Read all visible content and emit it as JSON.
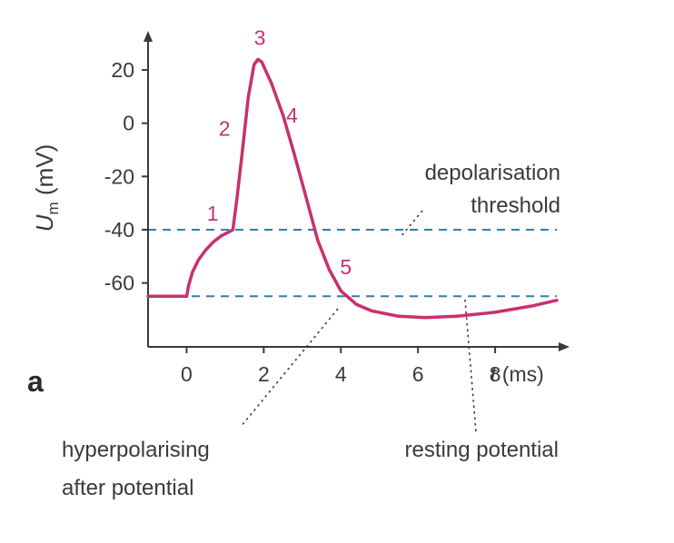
{
  "chart_data": {
    "type": "line",
    "panel_label": "a",
    "xlabel": {
      "var": "t",
      "unit": " (ms)"
    },
    "ylabel": {
      "var": "U",
      "sub": "m",
      "unit": " (mV)"
    },
    "xlim": [
      -1.0,
      9.6
    ],
    "ylim": [
      -84,
      34
    ],
    "x_ticks": [
      0,
      2,
      4,
      6,
      8
    ],
    "y_ticks": [
      20,
      0,
      -20,
      -40,
      -60
    ],
    "line_color": "#c8306e",
    "dashed_line_color": "#2e7fb8",
    "series": [
      {
        "points": [
          [
            -1.0,
            -65
          ],
          [
            0.0,
            -65
          ],
          [
            0.05,
            -61
          ],
          [
            0.15,
            -56
          ],
          [
            0.3,
            -51.5
          ],
          [
            0.5,
            -47.5
          ],
          [
            0.7,
            -44.5
          ],
          [
            0.9,
            -42.3
          ],
          [
            1.1,
            -40.8
          ],
          [
            1.2,
            -40
          ],
          [
            1.3,
            -29
          ],
          [
            1.45,
            -10
          ],
          [
            1.6,
            10
          ],
          [
            1.75,
            22
          ],
          [
            1.85,
            24
          ],
          [
            1.95,
            23
          ],
          [
            2.2,
            15
          ],
          [
            2.5,
            3
          ],
          [
            2.8,
            -12
          ],
          [
            3.1,
            -28
          ],
          [
            3.4,
            -44
          ],
          [
            3.7,
            -55
          ],
          [
            4.0,
            -63
          ],
          [
            4.4,
            -68
          ],
          [
            4.8,
            -70.5
          ],
          [
            5.5,
            -72.5
          ],
          [
            6.2,
            -73
          ],
          [
            7.0,
            -72.5
          ],
          [
            8.0,
            -71
          ],
          [
            9.0,
            -68.5
          ],
          [
            9.6,
            -66.5
          ]
        ]
      }
    ],
    "reference_lines": [
      {
        "y": -40,
        "x_from": -1.0,
        "x_to": 9.6
      },
      {
        "y": -65,
        "x_from": -1.0,
        "x_to": 9.6
      }
    ],
    "point_labels": [
      {
        "text": "1",
        "x": 1.1,
        "y": -40
      },
      {
        "text": "2",
        "x": 1.5,
        "y": 0
      },
      {
        "text": "3",
        "x": 1.85,
        "y": 24
      },
      {
        "text": "4",
        "x": 2.5,
        "y": 3
      },
      {
        "text": "5",
        "x": 3.8,
        "y": -58
      }
    ],
    "annotations": {
      "threshold": [
        "depolarisation",
        "threshold"
      ],
      "resting": [
        "resting potential"
      ],
      "hyperpolarising": [
        "hyperpolarising",
        "after potential"
      ]
    }
  }
}
